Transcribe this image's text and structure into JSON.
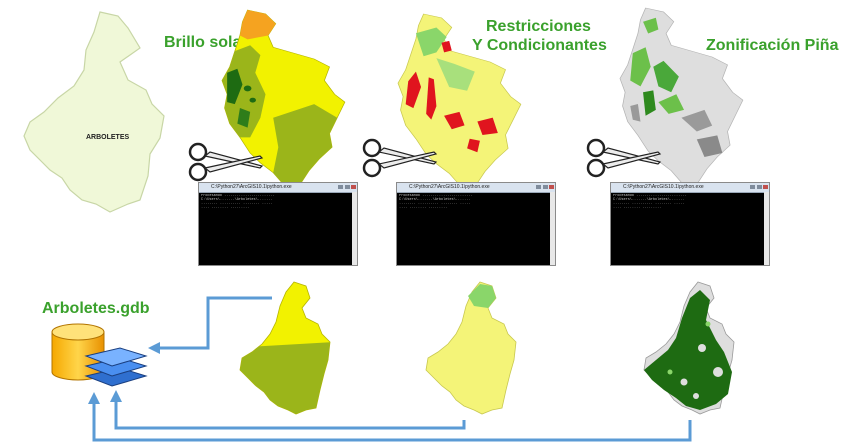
{
  "area_map": {
    "label": "ARBOLETES",
    "fill": "#f0f8d8"
  },
  "steps": [
    {
      "title": "Brillo solar"
    },
    {
      "title_line1": "Restricciones",
      "title_line2": "Y Condicionantes"
    },
    {
      "title": "Zonificación Piña"
    }
  ],
  "output": {
    "geodatabase_label": "Arboletes.gdb"
  },
  "colors": {
    "title_green": "#3aa12c",
    "arrow_blue": "#5b9bd5",
    "yellow": "#f2f200",
    "olive": "#9bb51a",
    "dark_green": "#1e6b12",
    "light_green": "#8ad66a",
    "red": "#e0141e",
    "grey": "#d4d4d4",
    "orange": "#f5a320"
  },
  "icons": [
    "scissors-icon",
    "console-window",
    "database-icon",
    "layers-icon"
  ]
}
